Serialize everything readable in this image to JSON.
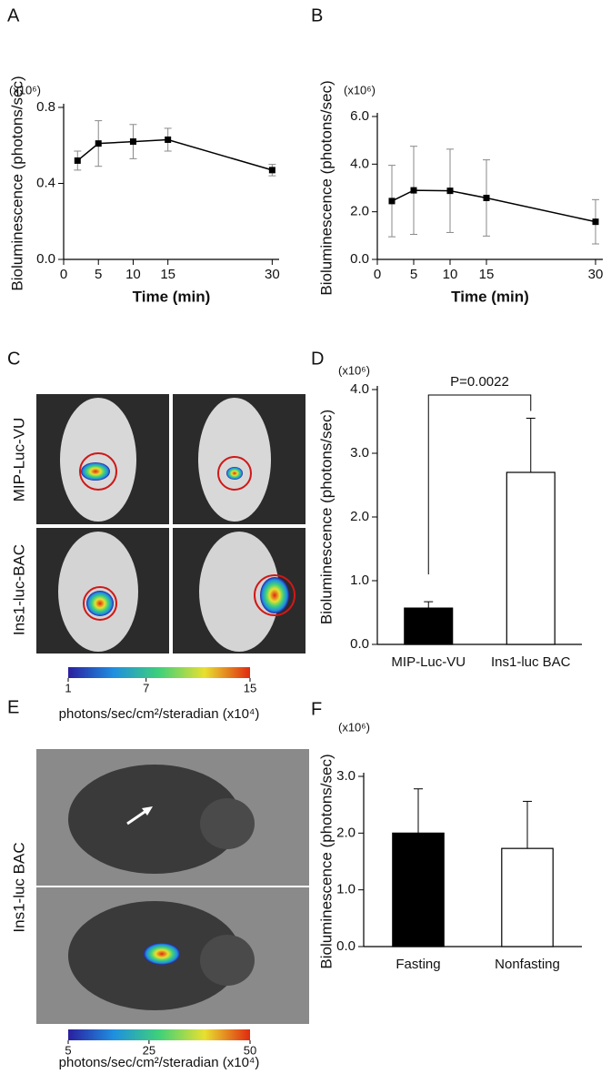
{
  "chart_data": [
    {
      "type": "line",
      "panel_label": "A",
      "y_unit": "(x10⁶)",
      "y_label": "Bioluminescence (photons/sec)",
      "x_label": "Time (min)",
      "x": [
        2,
        5,
        10,
        15,
        30
      ],
      "values": [
        0.52,
        0.61,
        0.62,
        0.63,
        0.47
      ],
      "errors": [
        0.05,
        0.12,
        0.09,
        0.06,
        0.03
      ],
      "xlim": [
        0,
        31
      ],
      "xticks": [
        0,
        5,
        10,
        15,
        30
      ],
      "ylim": [
        0,
        0.8
      ],
      "yticks": [
        {
          "value": 0,
          "label": "0.0"
        },
        0.4,
        0.8
      ],
      "color": "#000000",
      "error_color": "#888888"
    },
    {
      "type": "line",
      "panel_label": "B",
      "y_unit": "(x10⁶)",
      "y_label": "Bioluminescence (photons/sec)",
      "x_label": "Time (min)",
      "x": [
        2,
        5,
        10,
        15,
        30
      ],
      "values": [
        2.45,
        2.9,
        2.88,
        2.58,
        1.58
      ],
      "errors": [
        1.5,
        1.85,
        1.75,
        1.6,
        0.93
      ],
      "xlim": [
        0,
        31
      ],
      "xticks": [
        0,
        5,
        10,
        15,
        30
      ],
      "ylim": [
        0,
        6
      ],
      "yticks": [
        {
          "value": 0,
          "label": "0.0"
        },
        {
          "value": 2,
          "label": "2.0"
        },
        {
          "value": 4,
          "label": "4.0"
        },
        {
          "value": 6,
          "label": "6.0"
        }
      ],
      "color": "#000000",
      "error_color": "#888888"
    },
    {
      "type": "bar",
      "panel_label": "D",
      "y_unit": "(x10⁶)",
      "y_label": "Bioluminescence (photons/sec)",
      "annotation": "P=0.0022",
      "categories": [
        "MIP-Luc-VU",
        "Ins1-luc BAC"
      ],
      "values": [
        0.57,
        2.7
      ],
      "errors": [
        0.1,
        0.85
      ],
      "colors": [
        "#000000",
        "#ffffff"
      ],
      "ylim": [
        0,
        4
      ],
      "yticks": [
        {
          "value": 0,
          "label": "0.0"
        },
        {
          "value": 1,
          "label": "1.0"
        },
        {
          "value": 2,
          "label": "2.0"
        },
        {
          "value": 3,
          "label": "3.0"
        },
        {
          "value": 4,
          "label": "4.0"
        }
      ]
    },
    {
      "type": "bar",
      "panel_label": "F",
      "y_unit": "(x10⁶)",
      "y_label": "Bioluminescence (photons/sec)",
      "categories": [
        "Fasting",
        "Nonfasting"
      ],
      "values": [
        2.0,
        1.73
      ],
      "errors": [
        0.78,
        0.83
      ],
      "colors": [
        "#000000",
        "#ffffff"
      ],
      "ylim": [
        0,
        3
      ],
      "yticks": [
        {
          "value": 0,
          "label": "0.0"
        },
        {
          "value": 1,
          "label": "1.0"
        },
        {
          "value": 2,
          "label": "2.0"
        },
        {
          "value": 3,
          "label": "3.0"
        }
      ]
    }
  ],
  "image_panels": [
    {
      "panel_label": "C",
      "row_labels": [
        "MIP-Luc-VU",
        "Ins1-luc-BAC"
      ],
      "colorbar": {
        "lim": [
          1,
          15
        ],
        "ticks": [
          1,
          7,
          15
        ],
        "label": "photons/sec/cm²/steradian (x10⁴)"
      }
    },
    {
      "panel_label": "E",
      "row_labels": [
        "Ins1-luc BAC"
      ],
      "colorbar": {
        "lim": [
          5,
          50
        ],
        "ticks": [
          5,
          25,
          50
        ],
        "label": "photons/sec/cm²/steradian (x10⁴)"
      }
    }
  ]
}
